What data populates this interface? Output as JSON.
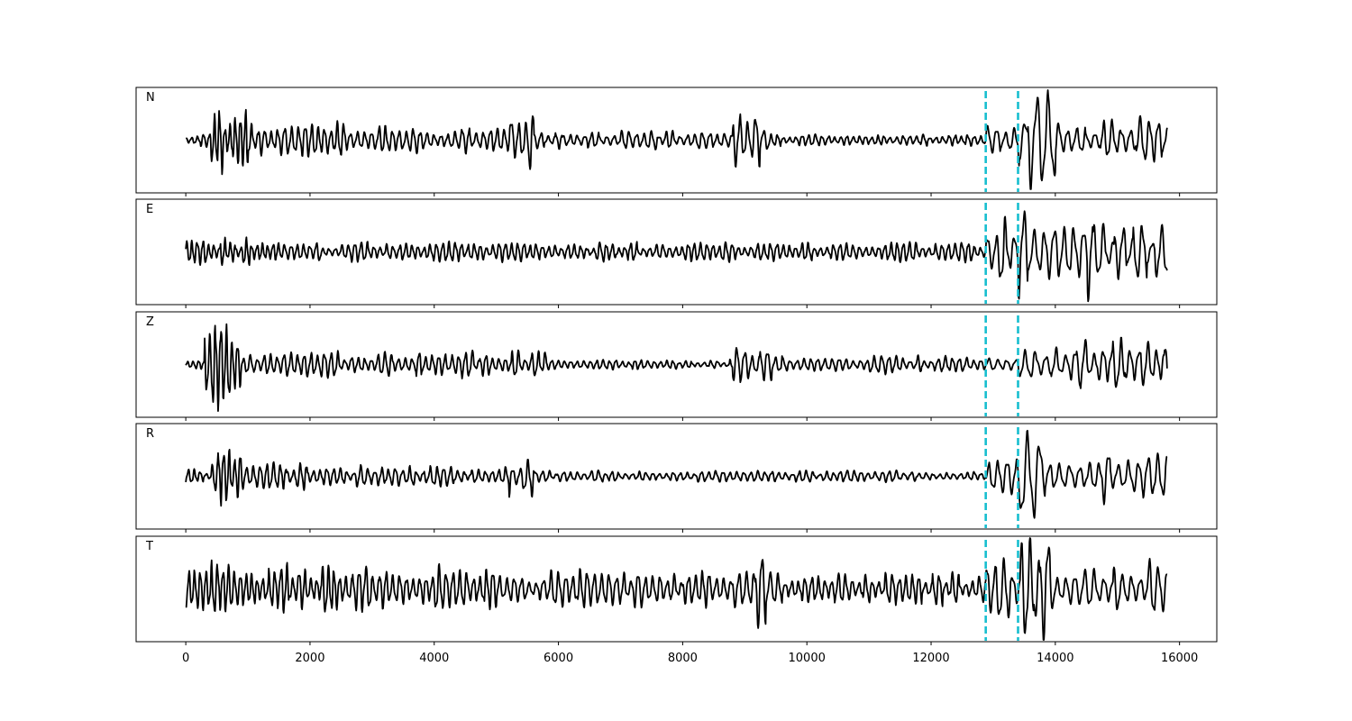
{
  "chart_data": {
    "type": "line",
    "x_ticks": [
      0,
      2000,
      4000,
      6000,
      8000,
      10000,
      12000,
      14000,
      16000
    ],
    "x_tick_labels": [
      "0",
      "2000",
      "4000",
      "6000",
      "8000",
      "10000",
      "12000",
      "14000",
      "16000"
    ],
    "xlim": [
      -800,
      16600
    ],
    "x_range": [
      0,
      15800
    ],
    "ylim": [
      -1.0,
      1.0
    ],
    "grid": false,
    "markers": {
      "x": [
        12880,
        13400
      ],
      "color": "#17becf",
      "style": "dashed"
    },
    "trace_color": "#000000",
    "series": [
      {
        "name": "N",
        "segments": [
          {
            "x0": 0,
            "x1": 400,
            "amp": 0.12,
            "period": 95
          },
          {
            "x0": 400,
            "x1": 1000,
            "amp": 0.55,
            "period": 85
          },
          {
            "x0": 1000,
            "x1": 2600,
            "amp": 0.28,
            "period": 110
          },
          {
            "x0": 2600,
            "x1": 5200,
            "amp": 0.22,
            "period": 115
          },
          {
            "x0": 5200,
            "x1": 5600,
            "amp": 0.48,
            "period": 120
          },
          {
            "x0": 5600,
            "x1": 8800,
            "amp": 0.15,
            "period": 120
          },
          {
            "x0": 8800,
            "x1": 9400,
            "amp": 0.42,
            "period": 130
          },
          {
            "x0": 9400,
            "x1": 12880,
            "amp": 0.09,
            "period": 105
          },
          {
            "x0": 12880,
            "x1": 13400,
            "amp": 0.3,
            "period": 150
          },
          {
            "x0": 13400,
            "x1": 14000,
            "amp": 0.78,
            "period": 190
          },
          {
            "x0": 14000,
            "x1": 15800,
            "amp": 0.35,
            "period": 150
          }
        ]
      },
      {
        "name": "E",
        "segments": [
          {
            "x0": 0,
            "x1": 1500,
            "amp": 0.22,
            "period": 90
          },
          {
            "x0": 1500,
            "x1": 12880,
            "amp": 0.16,
            "period": 105
          },
          {
            "x0": 12880,
            "x1": 13400,
            "amp": 0.55,
            "period": 150
          },
          {
            "x0": 13400,
            "x1": 14600,
            "amp": 0.8,
            "period": 165
          },
          {
            "x0": 14600,
            "x1": 15800,
            "amp": 0.45,
            "period": 160
          }
        ]
      },
      {
        "name": "Z",
        "segments": [
          {
            "x0": 0,
            "x1": 300,
            "amp": 0.1,
            "period": 90
          },
          {
            "x0": 300,
            "x1": 900,
            "amp": 0.78,
            "period": 90
          },
          {
            "x0": 900,
            "x1": 5800,
            "amp": 0.22,
            "period": 110
          },
          {
            "x0": 5800,
            "x1": 8800,
            "amp": 0.08,
            "period": 105
          },
          {
            "x0": 8800,
            "x1": 9600,
            "amp": 0.3,
            "period": 130
          },
          {
            "x0": 9600,
            "x1": 12880,
            "amp": 0.15,
            "period": 115
          },
          {
            "x0": 12880,
            "x1": 13400,
            "amp": 0.12,
            "period": 150
          },
          {
            "x0": 13400,
            "x1": 14400,
            "amp": 0.35,
            "period": 160
          },
          {
            "x0": 14400,
            "x1": 15800,
            "amp": 0.42,
            "period": 150
          }
        ]
      },
      {
        "name": "R",
        "segments": [
          {
            "x0": 0,
            "x1": 400,
            "amp": 0.12,
            "period": 95
          },
          {
            "x0": 400,
            "x1": 900,
            "amp": 0.48,
            "period": 90
          },
          {
            "x0": 900,
            "x1": 2600,
            "amp": 0.22,
            "period": 110
          },
          {
            "x0": 2600,
            "x1": 5200,
            "amp": 0.17,
            "period": 115
          },
          {
            "x0": 5200,
            "x1": 5600,
            "amp": 0.36,
            "period": 120
          },
          {
            "x0": 5600,
            "x1": 12880,
            "amp": 0.09,
            "period": 115
          },
          {
            "x0": 12880,
            "x1": 13400,
            "amp": 0.32,
            "period": 150
          },
          {
            "x0": 13400,
            "x1": 13800,
            "amp": 0.85,
            "period": 190
          },
          {
            "x0": 13800,
            "x1": 15800,
            "amp": 0.42,
            "period": 160
          }
        ]
      },
      {
        "name": "T",
        "segments": [
          {
            "x0": 0,
            "x1": 2600,
            "amp": 0.45,
            "period": 95
          },
          {
            "x0": 2600,
            "x1": 5000,
            "amp": 0.4,
            "period": 110
          },
          {
            "x0": 5000,
            "x1": 8800,
            "amp": 0.3,
            "period": 120
          },
          {
            "x0": 8800,
            "x1": 9600,
            "amp": 0.6,
            "period": 130
          },
          {
            "x0": 9600,
            "x1": 12880,
            "amp": 0.25,
            "period": 110
          },
          {
            "x0": 12880,
            "x1": 13400,
            "amp": 0.55,
            "period": 140
          },
          {
            "x0": 13400,
            "x1": 14000,
            "amp": 0.85,
            "period": 150
          },
          {
            "x0": 14000,
            "x1": 15800,
            "amp": 0.45,
            "period": 150
          }
        ]
      }
    ]
  }
}
